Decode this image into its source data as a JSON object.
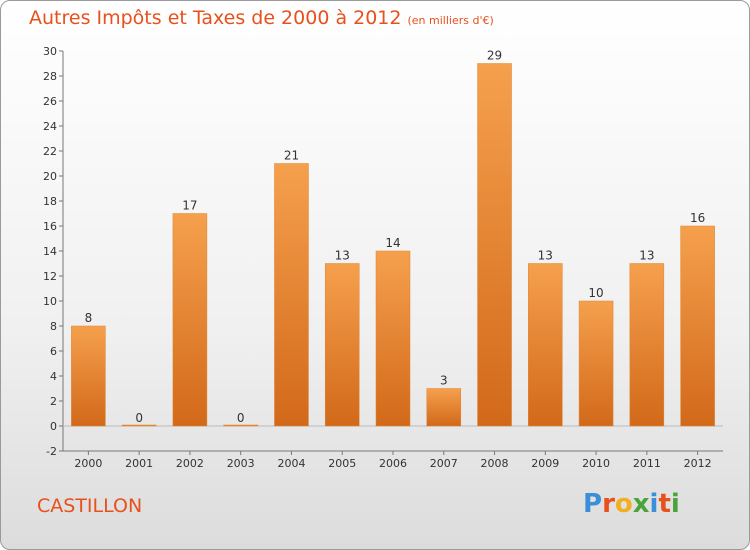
{
  "header": {
    "title": "Autres Impôts et Taxes de 2000 à 2012",
    "unit": "(en milliers d'€)"
  },
  "commune": "CASTILLON",
  "logo": {
    "letters": [
      {
        "ch": "P",
        "color": "#3a8fd6"
      },
      {
        "ch": "r",
        "color": "#e8501c"
      },
      {
        "ch": "o",
        "color": "#f2b01e"
      },
      {
        "ch": "x",
        "color": "#4aa43a"
      },
      {
        "ch": "i",
        "color": "#3a8fd6"
      },
      {
        "ch": "t",
        "color": "#e8501c"
      },
      {
        "ch": "i",
        "color": "#4aa43a"
      }
    ]
  },
  "colors": {
    "bar_top": "#f5a04d",
    "bar_bottom": "#d2691a",
    "title": "#e8501c"
  },
  "chart_data": {
    "type": "bar",
    "title": "Autres Impôts et Taxes de 2000 à 2012",
    "categories": [
      "2000",
      "2001",
      "2002",
      "2003",
      "2004",
      "2005",
      "2006",
      "2007",
      "2008",
      "2009",
      "2010",
      "2011",
      "2012"
    ],
    "values": [
      8,
      0,
      17,
      0,
      21,
      13,
      14,
      3,
      29,
      13,
      10,
      13,
      16
    ],
    "ylim": [
      -2,
      30
    ],
    "yticks": [
      -2,
      0,
      2,
      4,
      6,
      8,
      10,
      12,
      14,
      16,
      18,
      20,
      22,
      24,
      26,
      28,
      30
    ],
    "grid": false,
    "legend": "none"
  }
}
